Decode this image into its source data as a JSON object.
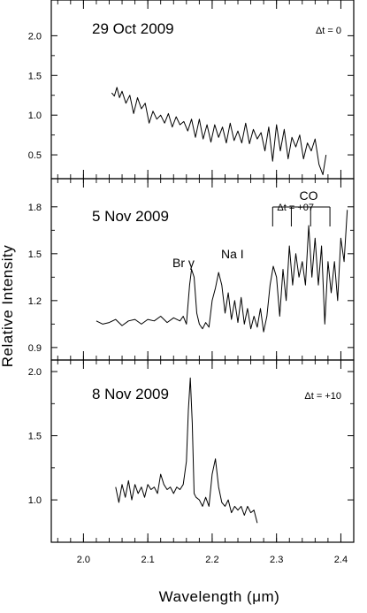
{
  "figure": {
    "ylabel": "Relative Intensity",
    "xlabel": "Wavelength (μm)"
  },
  "chart_data": [
    {
      "type": "line",
      "panel": 1,
      "title": "29 Oct 2009",
      "annotation": "Δt = 0",
      "xlim": [
        1.95,
        2.42
      ],
      "ylim": [
        0.2,
        2.45
      ],
      "xticks": [
        2.0,
        2.1,
        2.2,
        2.3,
        2.4
      ],
      "yticks": [
        0.5,
        1.0,
        1.5,
        2.0
      ],
      "ytick_labels": [
        "0.5",
        "1.0",
        "1.5",
        "2.0"
      ],
      "series": [
        {
          "x": [
            2.044,
            2.048,
            2.052,
            2.056,
            2.06,
            2.066,
            2.072,
            2.078,
            2.084,
            2.09,
            2.096,
            2.102,
            2.108,
            2.114,
            2.12,
            2.126,
            2.132,
            2.138,
            2.144,
            2.15,
            2.156,
            2.162,
            2.168,
            2.174,
            2.18,
            2.186,
            2.192,
            2.198,
            2.204,
            2.21,
            2.216,
            2.222,
            2.228,
            2.234,
            2.24,
            2.246,
            2.252,
            2.258,
            2.264,
            2.27,
            2.276,
            2.282,
            2.288,
            2.294,
            2.3,
            2.306,
            2.312,
            2.318,
            2.324,
            2.33,
            2.336,
            2.342,
            2.348,
            2.354,
            2.36,
            2.366,
            2.372,
            2.377
          ],
          "y": [
            1.28,
            1.24,
            1.35,
            1.22,
            1.3,
            1.15,
            1.25,
            1.02,
            1.22,
            1.08,
            1.15,
            0.9,
            1.05,
            0.95,
            1.0,
            0.9,
            1.02,
            0.85,
            0.98,
            0.88,
            0.92,
            0.8,
            0.95,
            0.72,
            0.95,
            0.7,
            0.88,
            0.66,
            0.88,
            0.72,
            0.85,
            0.65,
            0.9,
            0.68,
            0.8,
            0.65,
            0.9,
            0.64,
            0.82,
            0.7,
            0.78,
            0.55,
            0.85,
            0.42,
            0.88,
            0.55,
            0.82,
            0.45,
            0.72,
            0.6,
            0.75,
            0.45,
            0.65,
            0.55,
            0.7,
            0.38,
            0.25,
            0.5
          ]
        }
      ]
    },
    {
      "type": "line",
      "panel": 2,
      "title": "5 Nov 2009",
      "annotation": "Δt = +07",
      "xlim": [
        1.95,
        2.42
      ],
      "ylim": [
        0.82,
        1.98
      ],
      "xticks": [
        2.0,
        2.1,
        2.2,
        2.3,
        2.4
      ],
      "yticks": [
        0.9,
        1.2,
        1.5,
        1.8
      ],
      "ytick_labels": [
        "0.9",
        "1.2",
        "1.5",
        "1.8"
      ],
      "line_labels": [
        "Br γ",
        "Na I",
        "CO"
      ],
      "co_marks": [
        2.294,
        2.323,
        2.353,
        2.383
      ],
      "series": [
        {
          "x": [
            2.02,
            2.03,
            2.04,
            2.05,
            2.06,
            2.07,
            2.08,
            2.09,
            2.1,
            2.11,
            2.12,
            2.13,
            2.14,
            2.15,
            2.155,
            2.16,
            2.165,
            2.168,
            2.172,
            2.176,
            2.18,
            2.185,
            2.19,
            2.195,
            2.2,
            2.205,
            2.21,
            2.215,
            2.22,
            2.225,
            2.23,
            2.235,
            2.24,
            2.245,
            2.25,
            2.255,
            2.26,
            2.265,
            2.27,
            2.275,
            2.28,
            2.285,
            2.29,
            2.295,
            2.3,
            2.305,
            2.31,
            2.315,
            2.32,
            2.325,
            2.33,
            2.335,
            2.34,
            2.345,
            2.35,
            2.355,
            2.36,
            2.365,
            2.37,
            2.375,
            2.38,
            2.385,
            2.39,
            2.395,
            2.4,
            2.405,
            2.41
          ],
          "y": [
            1.07,
            1.05,
            1.06,
            1.08,
            1.04,
            1.07,
            1.08,
            1.05,
            1.08,
            1.07,
            1.1,
            1.06,
            1.09,
            1.07,
            1.1,
            1.05,
            1.3,
            1.4,
            1.35,
            1.12,
            1.05,
            1.02,
            1.06,
            1.03,
            1.2,
            1.28,
            1.38,
            1.3,
            1.12,
            1.25,
            1.08,
            1.2,
            1.06,
            1.22,
            1.05,
            1.15,
            1.02,
            1.1,
            1.03,
            1.15,
            1.0,
            1.1,
            1.3,
            1.42,
            1.35,
            1.1,
            1.4,
            1.2,
            1.55,
            1.3,
            1.5,
            1.35,
            1.45,
            1.3,
            1.68,
            1.35,
            1.6,
            1.3,
            1.55,
            1.05,
            1.45,
            1.25,
            1.45,
            1.2,
            1.6,
            1.45,
            1.78
          ]
        }
      ]
    },
    {
      "type": "line",
      "panel": 3,
      "title": "8 Nov 2009",
      "annotation": "Δt = +10",
      "xlim": [
        1.95,
        2.42
      ],
      "ylim": [
        0.67,
        2.09
      ],
      "xticks": [
        2.0,
        2.1,
        2.2,
        2.3,
        2.4
      ],
      "xtick_labels": [
        "2.0",
        "2.1",
        "2.2",
        "2.3",
        "2.4"
      ],
      "yticks": [
        1.0,
        1.5,
        2.0
      ],
      "ytick_labels": [
        "1.0",
        "1.5",
        "2.0"
      ],
      "series": [
        {
          "x": [
            2.05,
            2.055,
            2.06,
            2.065,
            2.07,
            2.075,
            2.08,
            2.085,
            2.09,
            2.095,
            2.1,
            2.105,
            2.11,
            2.115,
            2.12,
            2.125,
            2.13,
            2.135,
            2.14,
            2.145,
            2.15,
            2.155,
            2.16,
            2.163,
            2.166,
            2.169,
            2.172,
            2.175,
            2.18,
            2.185,
            2.19,
            2.195,
            2.2,
            2.205,
            2.21,
            2.215,
            2.22,
            2.225,
            2.23,
            2.235,
            2.24,
            2.245,
            2.25,
            2.255,
            2.26,
            2.265,
            2.27
          ],
          "y": [
            1.1,
            0.98,
            1.12,
            1.02,
            1.15,
            1.0,
            1.12,
            1.05,
            1.1,
            1.02,
            1.12,
            1.08,
            1.1,
            1.05,
            1.2,
            1.12,
            1.08,
            1.1,
            1.05,
            1.1,
            1.08,
            1.12,
            1.3,
            1.7,
            1.95,
            1.6,
            1.05,
            1.02,
            1.0,
            0.95,
            1.02,
            0.95,
            1.2,
            1.32,
            1.1,
            0.98,
            0.95,
            1.0,
            0.9,
            0.95,
            0.92,
            0.95,
            0.88,
            0.95,
            0.9,
            0.92,
            0.82
          ]
        }
      ]
    }
  ]
}
